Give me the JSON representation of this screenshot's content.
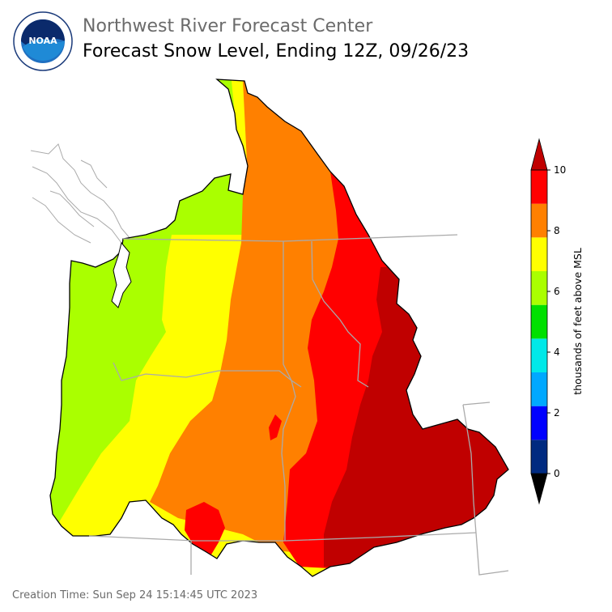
{
  "header": {
    "title": "Northwest River Forecast Center",
    "subtitle": "Forecast Snow Level, Ending 12Z, 09/26/23"
  },
  "logo": {
    "icon": "noaa-logo-icon",
    "text": "NOAA"
  },
  "legend": {
    "label": "thousands of feet above MSL",
    "ticks": [
      "0",
      "2",
      "4",
      "6",
      "8",
      "10"
    ],
    "colors": [
      "#000000",
      "#002a80",
      "#0000ff",
      "#00a8ff",
      "#00e8e8",
      "#00e000",
      "#aaff00",
      "#ffff00",
      "#ff8000",
      "#ff0000",
      "#c00000"
    ]
  },
  "map_colors": {
    "band_6_7": "#aaff00",
    "band_7_8": "#ffff00",
    "band_8_9": "#ff8000",
    "band_9_10": "#ff0000",
    "band_over_10": "#c00000",
    "boundaries": "#aaaaaa"
  },
  "footer": {
    "creation_time": "Creation Time: Sun Sep 24 15:14:45 UTC 2023"
  }
}
